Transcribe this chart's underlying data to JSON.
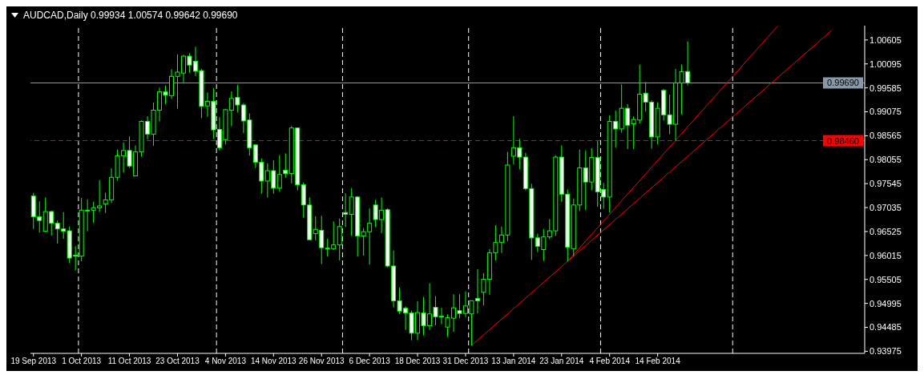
{
  "chart_data": {
    "type": "candlestick",
    "title": "AUDCAD,Daily 0.99934 1.00574 0.99642 0.99690",
    "color": "#00ff00",
    "categories": [
      "19 Sep 2013",
      null,
      null,
      null,
      null,
      null,
      null,
      null,
      "1 Oct 2013",
      null,
      null,
      null,
      null,
      null,
      null,
      null,
      "11 Oct 2013",
      null,
      null,
      null,
      null,
      null,
      null,
      null,
      "23 Oct 2013",
      null,
      null,
      null,
      null,
      null,
      null,
      null,
      "4 Nov 2013",
      null,
      null,
      null,
      null,
      null,
      null,
      null,
      "14 Nov 2013",
      null,
      null,
      null,
      null,
      null,
      null,
      null,
      "26 Nov 2013",
      null,
      null,
      null,
      null,
      null,
      null,
      null,
      "6 Dec 2013",
      null,
      null,
      null,
      null,
      null,
      null,
      null,
      "18 Dec 2013",
      null,
      null,
      null,
      null,
      null,
      null,
      null,
      "31 Dec 2013",
      null,
      null,
      null,
      null,
      null,
      null,
      null,
      "13 Jan 2014",
      null,
      null,
      null,
      null,
      null,
      null,
      null,
      "23 Jan 2014",
      null,
      null,
      null,
      null,
      null,
      null,
      null,
      "4 Feb 2014",
      null,
      null,
      null,
      null,
      null,
      null,
      null,
      "14 Feb 2014",
      null,
      null,
      null,
      null,
      null,
      null,
      null,
      null,
      null,
      null,
      null,
      null,
      null,
      null,
      null,
      null,
      null,
      null,
      null,
      null,
      null,
      null,
      null,
      null,
      null,
      null,
      null,
      null,
      null,
      null,
      null,
      null,
      null,
      null
    ],
    "ohlc": [
      [
        0.9728,
        0.9735,
        0.9658,
        0.9684
      ],
      [
        0.9684,
        0.9717,
        0.965,
        0.9676
      ],
      [
        0.9653,
        0.9725,
        0.9652,
        0.9695
      ],
      [
        0.9695,
        0.9697,
        0.9644,
        0.967
      ],
      [
        0.967,
        0.9676,
        0.9627,
        0.9658
      ],
      [
        0.9658,
        0.9694,
        0.9637,
        0.9653
      ],
      [
        0.9654,
        0.9663,
        0.9585,
        0.9596
      ],
      [
        0.9602,
        0.9621,
        0.957,
        0.96
      ],
      [
        0.96,
        0.9724,
        0.9589,
        0.9698
      ],
      [
        0.9698,
        0.9721,
        0.9653,
        0.9697
      ],
      [
        0.9698,
        0.9716,
        0.9671,
        0.9703
      ],
      [
        0.9703,
        0.9762,
        0.9694,
        0.9707
      ],
      [
        0.9711,
        0.9735,
        0.9692,
        0.972
      ],
      [
        0.972,
        0.9787,
        0.9713,
        0.9768
      ],
      [
        0.9768,
        0.9827,
        0.9761,
        0.9814
      ],
      [
        0.9814,
        0.9842,
        0.9778,
        0.9825
      ],
      [
        0.9825,
        0.9855,
        0.9788,
        0.9792
      ],
      [
        0.9771,
        0.9836,
        0.977,
        0.9822
      ],
      [
        0.9822,
        0.9889,
        0.9812,
        0.9887
      ],
      [
        0.9887,
        0.9898,
        0.9849,
        0.986
      ],
      [
        0.986,
        0.9927,
        0.9835,
        0.9911
      ],
      [
        0.9911,
        0.9959,
        0.9887,
        0.995
      ],
      [
        0.995,
        0.9963,
        0.9924,
        0.9943
      ],
      [
        0.9942,
        0.9998,
        0.9935,
        0.9983
      ],
      [
        0.9983,
        1.003,
        0.9914,
        0.9992
      ],
      [
        0.999,
        1.0029,
        0.997,
        1.0026
      ],
      [
        1.0026,
        1.0032,
        0.9991,
        1.0007
      ],
      [
        1.0015,
        1.0046,
        0.9984,
        0.9994
      ],
      [
        0.9995,
        0.9999,
        0.9894,
        0.9919
      ],
      [
        0.992,
        0.9949,
        0.9897,
        0.993
      ],
      [
        0.993,
        0.9958,
        0.985,
        0.9869
      ],
      [
        0.987,
        0.9896,
        0.9825,
        0.9831
      ],
      [
        0.9848,
        0.9914,
        0.9838,
        0.9912
      ],
      [
        0.9911,
        0.9951,
        0.9877,
        0.9936
      ],
      [
        0.9938,
        0.9965,
        0.9906,
        0.9922
      ],
      [
        0.9922,
        0.9926,
        0.9862,
        0.9888
      ],
      [
        0.989,
        0.9904,
        0.9814,
        0.9831
      ],
      [
        0.9837,
        0.9839,
        0.9788,
        0.98
      ],
      [
        0.98,
        0.9808,
        0.9733,
        0.976
      ],
      [
        0.976,
        0.9798,
        0.9725,
        0.9782
      ],
      [
        0.9782,
        0.9804,
        0.9733,
        0.9745
      ],
      [
        0.9745,
        0.9815,
        0.9738,
        0.9774
      ],
      [
        0.9783,
        0.9819,
        0.9767,
        0.9776
      ],
      [
        0.9776,
        0.9877,
        0.9755,
        0.9873
      ],
      [
        0.9873,
        0.9874,
        0.974,
        0.9752
      ],
      [
        0.9752,
        0.9757,
        0.9682,
        0.9709
      ],
      [
        0.9709,
        0.9725,
        0.9635,
        0.9635
      ],
      [
        0.9648,
        0.9685,
        0.9634,
        0.9657
      ],
      [
        0.9655,
        0.9686,
        0.9583,
        0.9618
      ],
      [
        0.9617,
        0.9637,
        0.9599,
        0.9616
      ],
      [
        0.9616,
        0.9674,
        0.9613,
        0.9624
      ],
      [
        0.9624,
        0.968,
        0.9591,
        0.9663
      ],
      [
        0.9693,
        0.9734,
        0.9662,
        0.9689
      ],
      [
        0.9689,
        0.9745,
        0.9643,
        0.9726
      ],
      [
        0.9726,
        0.9728,
        0.9599,
        0.9643
      ],
      [
        0.9643,
        0.966,
        0.9601,
        0.9652
      ],
      [
        0.9652,
        0.9702,
        0.9582,
        0.967
      ],
      [
        0.9709,
        0.972,
        0.9662,
        0.9678
      ],
      [
        0.9678,
        0.9725,
        0.9649,
        0.9698
      ],
      [
        0.9699,
        0.9702,
        0.9576,
        0.9579
      ],
      [
        0.9579,
        0.9612,
        0.9491,
        0.9505
      ],
      [
        0.9505,
        0.9533,
        0.9477,
        0.9483
      ],
      [
        0.9489,
        0.9493,
        0.9443,
        0.9479
      ],
      [
        0.9479,
        0.9484,
        0.9421,
        0.9436
      ],
      [
        0.9436,
        0.9504,
        0.9421,
        0.948
      ],
      [
        0.9479,
        0.9513,
        0.9431,
        0.9452
      ],
      [
        0.9452,
        0.9542,
        0.9443,
        0.9477
      ],
      [
        0.9491,
        0.9515,
        0.9453,
        0.9471
      ],
      [
        0.9472,
        0.949,
        0.9455,
        0.9471
      ],
      [
        0.9449,
        0.9476,
        0.9428,
        0.9469
      ],
      [
        0.9468,
        0.9519,
        0.9439,
        0.949
      ],
      [
        0.9484,
        0.9519,
        0.9468,
        0.9478
      ],
      [
        0.9478,
        0.9525,
        0.947,
        0.9494
      ],
      [
        0.9477,
        0.9505,
        0.941,
        0.9505
      ],
      [
        0.951,
        0.9572,
        0.9478,
        0.9505
      ],
      [
        0.9523,
        0.9564,
        0.9495,
        0.9551
      ],
      [
        0.9551,
        0.9615,
        0.9518,
        0.9607
      ],
      [
        0.9607,
        0.9666,
        0.9591,
        0.9629
      ],
      [
        0.9629,
        0.9663,
        0.9607,
        0.9645
      ],
      [
        0.9645,
        0.9822,
        0.9632,
        0.9794
      ],
      [
        0.9813,
        0.9898,
        0.9796,
        0.9831
      ],
      [
        0.9831,
        0.985,
        0.9785,
        0.9811
      ],
      [
        0.9811,
        0.982,
        0.974,
        0.9744
      ],
      [
        0.9744,
        0.9754,
        0.9592,
        0.9639
      ],
      [
        0.9639,
        0.9648,
        0.9609,
        0.9621
      ],
      [
        0.9614,
        0.9658,
        0.959,
        0.9641
      ],
      [
        0.9641,
        0.9679,
        0.9636,
        0.9654
      ],
      [
        0.9654,
        0.9815,
        0.9643,
        0.9811
      ],
      [
        0.9811,
        0.9836,
        0.9715,
        0.9732
      ],
      [
        0.9732,
        0.9742,
        0.9589,
        0.9619
      ],
      [
        0.9616,
        0.9723,
        0.96,
        0.9709
      ],
      [
        0.9709,
        0.9827,
        0.9696,
        0.9788
      ],
      [
        0.9788,
        0.9825,
        0.9698,
        0.9758
      ],
      [
        0.9758,
        0.983,
        0.974,
        0.981
      ],
      [
        0.981,
        0.9845,
        0.9705,
        0.9737
      ],
      [
        0.9742,
        0.9756,
        0.9701,
        0.9726
      ],
      [
        0.9726,
        0.99,
        0.9693,
        0.9887
      ],
      [
        0.9887,
        0.991,
        0.9831,
        0.9871
      ],
      [
        0.9871,
        0.9966,
        0.9863,
        0.9915
      ],
      [
        0.9915,
        0.9924,
        0.9828,
        0.9879
      ],
      [
        0.9882,
        0.9898,
        0.9828,
        0.9891
      ],
      [
        0.989,
        1.0008,
        0.9882,
        0.9945
      ],
      [
        0.9947,
        0.9971,
        0.9908,
        0.9928
      ],
      [
        0.9928,
        0.9932,
        0.9829,
        0.9854
      ],
      [
        0.9854,
        0.9928,
        0.9838,
        0.9915
      ],
      [
        0.9953,
        0.9956,
        0.9889,
        0.9901
      ],
      [
        0.9901,
        0.9944,
        0.986,
        0.9881
      ],
      [
        0.9881,
        0.9999,
        0.9846,
        0.9969
      ],
      [
        0.9969,
        1.0008,
        0.9902,
        0.9993
      ],
      [
        0.99934,
        1.00574,
        0.99642,
        0.9969
      ],
      null,
      null,
      null,
      null,
      null,
      null,
      null,
      null,
      null,
      null,
      null,
      null,
      null,
      null,
      null,
      null,
      null,
      null,
      null,
      null,
      null,
      null,
      null,
      null,
      null,
      null,
      null,
      null,
      null
    ],
    "series": [
      {
        "type": "line",
        "color": "#ff0000",
        "values": [
          null,
          null,
          null,
          null,
          null,
          null,
          null,
          null,
          null,
          null,
          null,
          null,
          null,
          null,
          null,
          null,
          null,
          null,
          null,
          null,
          null,
          null,
          null,
          null,
          null,
          null,
          null,
          null,
          null,
          null,
          null,
          null,
          null,
          null,
          null,
          null,
          null,
          null,
          null,
          null,
          null,
          null,
          null,
          null,
          null,
          null,
          null,
          null,
          null,
          null,
          null,
          null,
          null,
          null,
          null,
          null,
          null,
          null,
          null,
          null,
          null,
          null,
          null,
          null,
          null,
          null,
          null,
          null,
          null,
          null,
          null,
          null,
          null,
          0.941,
          null,
          null,
          null,
          null,
          null,
          null,
          null,
          null,
          null,
          null,
          null,
          null,
          null,
          null,
          null,
          null,
          null,
          null,
          null,
          null,
          null,
          null,
          null,
          null,
          null,
          null,
          null,
          null,
          null,
          null,
          null,
          null,
          null,
          null,
          null,
          null,
          null,
          null,
          null,
          null,
          null,
          null,
          null,
          null,
          null,
          null,
          null,
          null,
          null,
          null,
          null,
          null,
          null,
          null,
          null,
          null,
          null,
          null,
          null,
          1.0081,
          null,
          null,
          null,
          null,
          null
        ]
      },
      {
        "type": "line",
        "color": "#ff0000",
        "values": [
          null,
          null,
          null,
          null,
          null,
          null,
          null,
          null,
          null,
          null,
          null,
          null,
          null,
          null,
          null,
          null,
          null,
          null,
          null,
          null,
          null,
          null,
          null,
          null,
          null,
          null,
          null,
          null,
          null,
          null,
          null,
          null,
          null,
          null,
          null,
          null,
          null,
          null,
          null,
          null,
          null,
          null,
          null,
          null,
          null,
          null,
          null,
          null,
          null,
          null,
          null,
          null,
          null,
          null,
          null,
          null,
          null,
          null,
          null,
          null,
          null,
          null,
          null,
          null,
          null,
          null,
          null,
          null,
          null,
          null,
          null,
          null,
          null,
          null,
          null,
          null,
          null,
          null,
          null,
          null,
          null,
          null,
          null,
          null,
          null,
          null,
          null,
          null,
          null,
          0.9589,
          null,
          null,
          null,
          null,
          null,
          null,
          null,
          null,
          null,
          null,
          null,
          null,
          null,
          null,
          null,
          null,
          null,
          null,
          null,
          null,
          null,
          null,
          null,
          null,
          null,
          null,
          null,
          null,
          null,
          null,
          null,
          null,
          null,
          null,
          1.009,
          null,
          null,
          null,
          null,
          null,
          null,
          null,
          null,
          null,
          null,
          null,
          null,
          null,
          null
        ]
      }
    ],
    "ylim": [
      0.9393,
      1.0091
    ],
    "yticks": [
      0.93975,
      0.94485,
      0.94995,
      0.95505,
      0.96015,
      0.96525,
      0.97035,
      0.97545,
      0.98055,
      0.98565,
      0.99075,
      0.99585,
      1.00095,
      1.00605
    ],
    "ref_lines": [
      {
        "axis": "y",
        "value": 0.9969,
        "label": "0.99690",
        "color": "#8899aa"
      },
      {
        "axis": "y",
        "value": 0.9846,
        "label": "0.98460",
        "color": "#ff0000",
        "line_style": "dashed"
      }
    ]
  }
}
